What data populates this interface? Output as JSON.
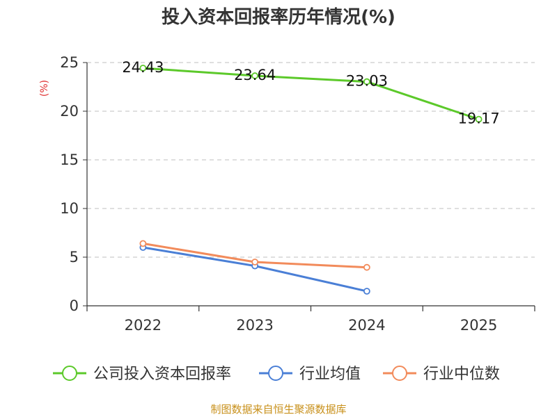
{
  "chart_data": {
    "type": "line",
    "title": "投入资本回报率历年情况(%)",
    "ylabel": "(%)",
    "xlabel": "",
    "categories": [
      "2022",
      "2023",
      "2024",
      "2025"
    ],
    "ylim": [
      0,
      25
    ],
    "yticks": [
      0,
      5,
      10,
      15,
      20,
      25
    ],
    "grid": true,
    "legend_position": "bottom",
    "series": [
      {
        "name": "公司投入资本回报率",
        "color": "#5cc92a",
        "values": [
          24.43,
          23.64,
          23.03,
          19.17
        ],
        "labels": [
          "24.43",
          "23.64",
          "23.03",
          "19.17"
        ]
      },
      {
        "name": "行业均值",
        "color": "#4a7fd6",
        "values": [
          6.0,
          4.1,
          1.5,
          null
        ],
        "labels": []
      },
      {
        "name": "行业中位数",
        "color": "#f28b5b",
        "values": [
          6.4,
          4.5,
          3.95,
          null
        ],
        "labels": []
      }
    ]
  },
  "footer": {
    "source": "制图数据来自恒生聚源数据库"
  }
}
